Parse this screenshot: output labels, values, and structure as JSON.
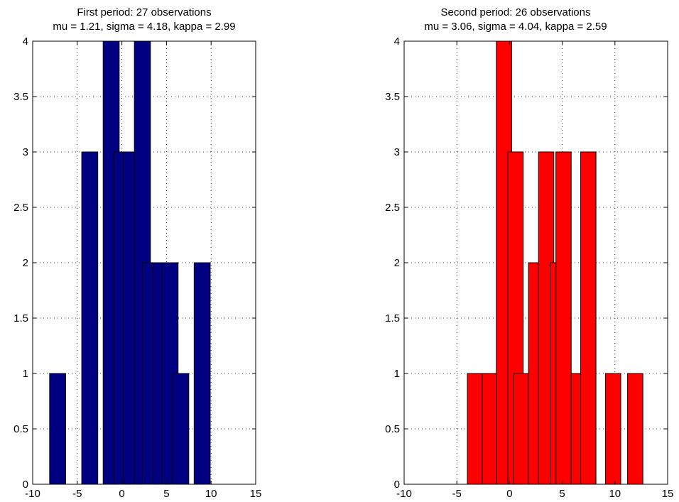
{
  "chart_data": [
    {
      "type": "bar",
      "title": "First period: 27 observations",
      "subtitle": "mu = 1.21, sigma = 4.18, kappa = 2.99",
      "color": "#000080",
      "xlim": [
        -10,
        15
      ],
      "ylim": [
        0,
        4
      ],
      "grid": true,
      "xticks": [
        "-10",
        "-5",
        "0",
        "5",
        "10",
        "15"
      ],
      "yticks": [
        "0",
        "0.5",
        "1",
        "1.5",
        "2",
        "2.5",
        "3",
        "3.5",
        "4"
      ],
      "bin_width": 1.8,
      "bins": [
        {
          "x0": -8.1,
          "value": 1
        },
        {
          "x0": -4.5,
          "value": 3
        },
        {
          "x0": -2.1,
          "value": 4
        },
        {
          "x0": -0.9,
          "value": 3
        },
        {
          "x0": 0.2,
          "value": 3
        },
        {
          "x0": 1.4,
          "value": 4
        },
        {
          "x0": 2.3,
          "value": 2
        },
        {
          "x0": 3.5,
          "value": 2
        },
        {
          "x0": 4.5,
          "value": 2
        },
        {
          "x0": 5.7,
          "value": 1
        },
        {
          "x0": 8.1,
          "value": 2
        }
      ]
    },
    {
      "type": "bar",
      "title": "Second period: 26 observations",
      "subtitle": "mu = 3.06, sigma = 4.04, kappa = 2.59",
      "color": "#ff0000",
      "xlim": [
        -10,
        15
      ],
      "ylim": [
        0,
        4
      ],
      "grid": true,
      "xticks": [
        "-10",
        "-5",
        "0",
        "5",
        "10",
        "15"
      ],
      "yticks": [
        "0",
        "0.5",
        "1",
        "1.5",
        "2",
        "2.5",
        "3",
        "3.5",
        "4"
      ],
      "bin_width": 1.45,
      "bins": [
        {
          "x0": -4.0,
          "value": 1
        },
        {
          "x0": -2.6,
          "value": 1
        },
        {
          "x0": -1.25,
          "value": 4
        },
        {
          "x0": -0.15,
          "value": 3
        },
        {
          "x0": 0.4,
          "value": 1
        },
        {
          "x0": 1.8,
          "value": 2
        },
        {
          "x0": 2.75,
          "value": 3
        },
        {
          "x0": 3.85,
          "value": 2
        },
        {
          "x0": 4.4,
          "value": 3
        },
        {
          "x0": 5.85,
          "value": 1
        },
        {
          "x0": 6.75,
          "value": 3
        },
        {
          "x0": 9.1,
          "value": 1
        },
        {
          "x0": 11.2,
          "value": 1
        }
      ]
    }
  ]
}
